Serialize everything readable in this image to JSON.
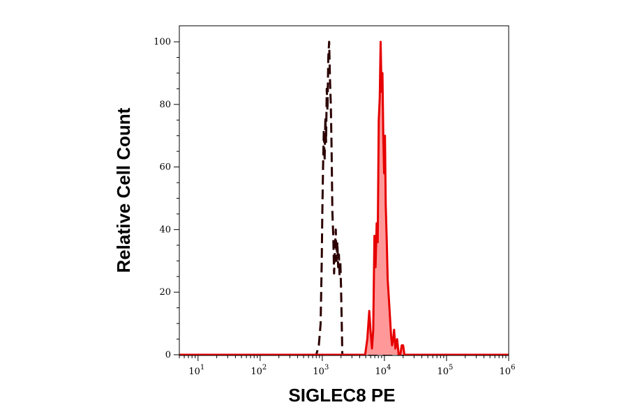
{
  "chart_data": {
    "type": "line",
    "xlabel": "SIGLEC8 PE",
    "ylabel": "Relative Cell Count",
    "x_scale": "log",
    "xlim": [
      5,
      1000000
    ],
    "ylim": [
      0,
      100
    ],
    "grid": false,
    "legend": "none",
    "x_ticks": [
      {
        "base": "10",
        "exp": "1",
        "value": 10
      },
      {
        "base": "10",
        "exp": "2",
        "value": 100
      },
      {
        "base": "10",
        "exp": "3",
        "value": 1000
      },
      {
        "base": "10",
        "exp": "4",
        "value": 10000
      },
      {
        "base": "10",
        "exp": "5",
        "value": 100000
      },
      {
        "base": "10",
        "exp": "6",
        "value": 1000000
      }
    ],
    "y_ticks": [
      "0",
      "20",
      "40",
      "60",
      "80",
      "100"
    ],
    "series": [
      {
        "style": "dashed",
        "color": "#2b0000",
        "fill": "none",
        "x": [
          5,
          800,
          880,
          940,
          980,
          1000,
          1030,
          1060,
          1090,
          1120,
          1150,
          1180,
          1210,
          1250,
          1290,
          1330,
          1370,
          1410,
          1450,
          1500,
          1550,
          1600,
          1650,
          1700,
          1750,
          1800,
          1850,
          1900,
          1950,
          2000,
          2050,
          2100,
          1000000
        ],
        "y": [
          0,
          0,
          3,
          10,
          30,
          45,
          60,
          72,
          62,
          76,
          68,
          85,
          78,
          95,
          100,
          88,
          80,
          66,
          46,
          38,
          26,
          34,
          40,
          30,
          36,
          28,
          32,
          25,
          30,
          22,
          12,
          0,
          0
        ]
      },
      {
        "style": "solid",
        "color": "#e60000",
        "fill": "#ff9999",
        "x": [
          5,
          4900,
          5300,
          5700,
          6000,
          6300,
          6600,
          6900,
          7200,
          7500,
          7800,
          8100,
          8400,
          8700,
          9000,
          9300,
          9600,
          9900,
          10200,
          10500,
          10900,
          11300,
          11800,
          12300,
          12800,
          13300,
          13800,
          14300,
          15000,
          16000,
          17000,
          18000,
          19000,
          20000,
          21000,
          22000,
          1000000
        ],
        "y": [
          0,
          0,
          5,
          14,
          7,
          2,
          8,
          38,
          28,
          42,
          36,
          75,
          82,
          100,
          84,
          90,
          70,
          58,
          70,
          48,
          36,
          24,
          18,
          12,
          6,
          3,
          5,
          8,
          2,
          5,
          0,
          0,
          3,
          3,
          0,
          0,
          0
        ]
      }
    ]
  }
}
